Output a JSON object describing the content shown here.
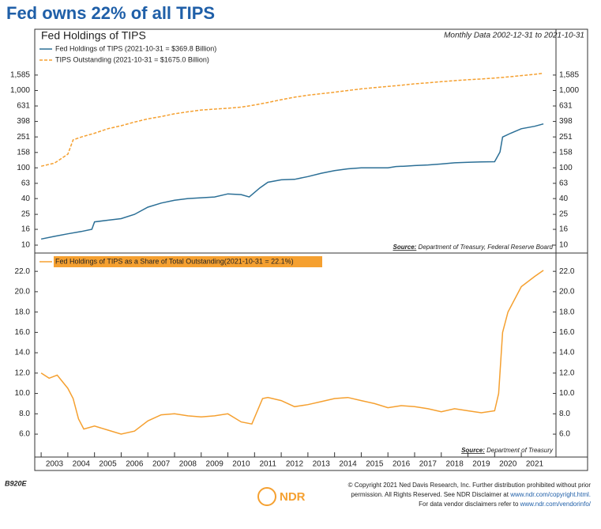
{
  "header": {
    "title": "Fed owns 22% of all TIPS"
  },
  "chart_data": [
    {
      "type": "line",
      "title": "Fed Holdings of TIPS",
      "subtitle": "Monthly Data 2002-12-31 to 2021-10-31",
      "source_label": "Source:",
      "source": "Department of Treasury, Federal Reserve Board",
      "log_scale": true,
      "xlim": [
        2002.76,
        2022.3
      ],
      "ylim": [
        7.9,
        6200
      ],
      "yticks": [
        10,
        16,
        25,
        40,
        63,
        100,
        158,
        251,
        398,
        631,
        {
          "value": 1000,
          "label": "1,000"
        },
        {
          "value": 1585,
          "label": "1,585"
        }
      ],
      "series": [
        {
          "name": "Fed Holdings of TIPS (2021-10-31 = $369.8 Billion)",
          "color": "#2b6f96",
          "style": "solid",
          "x": [
            2003,
            2003.5,
            2004,
            2004.5,
            2004.9,
            2005,
            2005.5,
            2006,
            2006.5,
            2007,
            2007.5,
            2008,
            2008.5,
            2009,
            2009.5,
            2010,
            2010.5,
            2010.8,
            2011.2,
            2011.5,
            2012,
            2012.5,
            2013,
            2013.5,
            2014,
            2014.5,
            2015,
            2015.5,
            2016,
            2016.3,
            2016.6,
            2017,
            2017.5,
            2018,
            2018.5,
            2019,
            2019.5,
            2020,
            2020.2,
            2020.3,
            2020.6,
            2021,
            2021.5,
            2021.83
          ],
          "values": [
            12,
            13,
            14,
            15,
            16,
            20,
            21,
            22,
            25,
            31,
            35,
            38,
            40,
            41,
            42,
            46,
            45,
            42,
            55,
            65,
            70,
            71,
            77,
            85,
            92,
            97,
            100,
            100,
            100,
            104,
            105,
            107,
            109,
            112,
            116,
            118,
            119,
            120,
            160,
            250,
            280,
            320,
            345,
            369.8
          ]
        },
        {
          "name": "TIPS Outstanding (2021-10-31 = $1675.0 Billion)",
          "color": "#f5a030",
          "style": "dashed",
          "x": [
            2003,
            2003.5,
            2004,
            2004.2,
            2004.5,
            2005,
            2005.5,
            2006,
            2006.5,
            2007,
            2007.5,
            2008,
            2008.5,
            2009,
            2009.5,
            2010,
            2010.5,
            2011,
            2011.5,
            2012,
            2012.5,
            2013,
            2013.5,
            2014,
            2014.5,
            2015,
            2015.5,
            2016,
            2016.5,
            2017,
            2017.5,
            2018,
            2018.5,
            2019,
            2019.5,
            2020,
            2020.5,
            2021,
            2021.5,
            2021.83
          ],
          "values": [
            105,
            115,
            150,
            230,
            250,
            280,
            320,
            350,
            390,
            430,
            460,
            500,
            530,
            560,
            575,
            590,
            610,
            650,
            700,
            760,
            820,
            870,
            910,
            950,
            1000,
            1050,
            1090,
            1130,
            1170,
            1220,
            1260,
            1300,
            1340,
            1380,
            1410,
            1450,
            1500,
            1560,
            1620,
            1675
          ]
        }
      ]
    },
    {
      "type": "line",
      "source_label": "Source:",
      "source": "Department of Treasury",
      "xlim": [
        2002.76,
        2022.3
      ],
      "ylim": [
        3.75,
        23.8
      ],
      "yticks": [
        {
          "value": 6,
          "label": "6.0"
        },
        {
          "value": 8,
          "label": "8.0"
        },
        {
          "value": 10,
          "label": "10.0"
        },
        {
          "value": 12,
          "label": "12.0"
        },
        {
          "value": 14,
          "label": "14.0"
        },
        {
          "value": 16,
          "label": "16.0"
        },
        {
          "value": 18,
          "label": "18.0"
        },
        {
          "value": 20,
          "label": "20.0"
        },
        {
          "value": 22,
          "label": "22.0"
        }
      ],
      "xticks": [
        2003,
        2004,
        2005,
        2006,
        2007,
        2008,
        2009,
        2010,
        2011,
        2012,
        2013,
        2014,
        2015,
        2016,
        2017,
        2018,
        2019,
        2020,
        2021
      ],
      "series": [
        {
          "name": "Fed Holdings of TIPS as a Share of Total Outstanding(2021-10-31 = 22.1%)",
          "color": "#f5a030",
          "style": "solid",
          "x": [
            2003,
            2003.3,
            2003.6,
            2004,
            2004.2,
            2004.4,
            2004.6,
            2005,
            2005.5,
            2006,
            2006.5,
            2007,
            2007.5,
            2008,
            2008.5,
            2009,
            2009.5,
            2010,
            2010.5,
            2010.9,
            2011.3,
            2011.5,
            2012,
            2012.5,
            2013,
            2013.5,
            2014,
            2014.5,
            2015,
            2015.5,
            2016,
            2016.5,
            2017,
            2017.5,
            2018,
            2018.5,
            2019,
            2019.5,
            2020,
            2020.15,
            2020.3,
            2020.5,
            2021,
            2021.5,
            2021.83
          ],
          "values": [
            12,
            11.5,
            11.8,
            10.5,
            9.5,
            7.5,
            6.5,
            6.8,
            6.4,
            6.0,
            6.3,
            7.3,
            7.9,
            8.0,
            7.8,
            7.7,
            7.8,
            8.0,
            7.2,
            7.0,
            9.5,
            9.6,
            9.3,
            8.7,
            8.9,
            9.2,
            9.5,
            9.6,
            9.3,
            9.0,
            8.6,
            8.8,
            8.7,
            8.5,
            8.2,
            8.5,
            8.3,
            8.1,
            8.3,
            10,
            16,
            18,
            20.5,
            21.5,
            22.1
          ]
        }
      ]
    }
  ],
  "footer": {
    "code": "B920E",
    "logo": "NDR",
    "lines": [
      {
        "text": "© Copyright 2021 Ned Davis Research, Inc. Further distribution prohibited without prior",
        "link": ""
      },
      {
        "text": "permission. All Rights Reserved. See NDR Disclaimer at ",
        "link": "www.ndr.com/copyright.html."
      },
      {
        "text": "For data vendor disclaimers refer to ",
        "link": "www.ndr.com/vendorinfo/"
      }
    ]
  }
}
